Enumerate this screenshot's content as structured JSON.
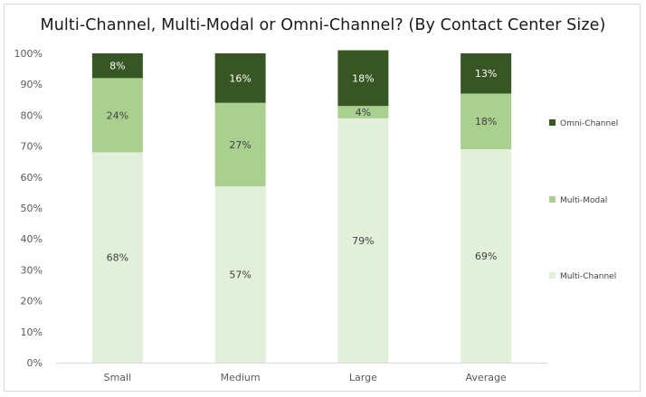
{
  "chart_data": {
    "type": "bar",
    "stacked": true,
    "title": "Multi-Channel, Multi-Modal or Omni-Channel? (By Contact Center Size)",
    "categories": [
      "Small",
      "Medium",
      "Large",
      "Average"
    ],
    "series": [
      {
        "name": "Multi-Channel",
        "values": [
          68,
          57,
          79,
          69
        ],
        "labels": [
          "68%",
          "57%",
          "79%",
          "69%"
        ],
        "color": "#e2efda",
        "label_color": "#404040"
      },
      {
        "name": "Multi-Modal",
        "values": [
          24,
          27,
          4,
          18
        ],
        "labels": [
          "24%",
          "27%",
          "4%",
          "18%"
        ],
        "color": "#a9d08e",
        "label_color": "#404040"
      },
      {
        "name": "Omni-Channel",
        "values": [
          8,
          16,
          18,
          13
        ],
        "labels": [
          "8%",
          "16%",
          "18%",
          "13%"
        ],
        "color": "#375623",
        "label_color": "#ffffff"
      }
    ],
    "ylim": [
      0,
      100
    ],
    "y_ticks": [
      "0%",
      "10%",
      "20%",
      "30%",
      "40%",
      "50%",
      "60%",
      "70%",
      "80%",
      "90%",
      "100%"
    ],
    "legend_order": [
      "Omni-Channel",
      "Multi-Modal",
      "Multi-Channel"
    ],
    "legend_position": "right",
    "grid": false
  }
}
